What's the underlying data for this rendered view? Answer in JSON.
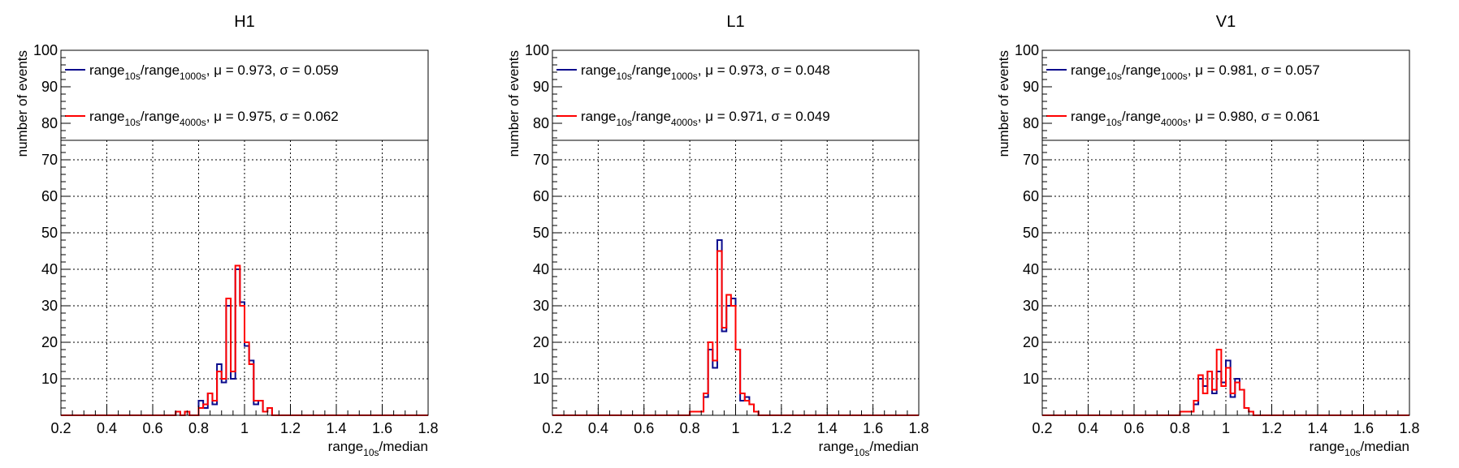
{
  "chart_data": [
    {
      "type": "histogram",
      "title": "H1",
      "xlabel": {
        "base": "range",
        "sub": "10s",
        "rest": "/median"
      },
      "ylabel": "number of events",
      "xlim": [
        0.2,
        1.8
      ],
      "ylim": [
        0,
        100
      ],
      "grid": true,
      "legend_position": "top",
      "x_ticks": [
        "0.2",
        "0.4",
        "0.6",
        "0.8",
        "1",
        "1.2",
        "1.4",
        "1.6",
        "1.8"
      ],
      "y_ticks": [
        "10",
        "20",
        "30",
        "40",
        "50",
        "60",
        "70",
        "80",
        "90",
        "100"
      ],
      "bin_width": 0.02,
      "bin_start": 0.7,
      "series": [
        {
          "legend": {
            "base": "range",
            "sub1": "10s",
            "mid": "/range",
            "sub2": "1000s",
            "stats": ", μ = 0.973, σ = 0.059"
          },
          "color": "#0a0a8c",
          "values": [
            1,
            0,
            1,
            0,
            0,
            4,
            2,
            6,
            3,
            14,
            9,
            30,
            10,
            40,
            31,
            19,
            15,
            3,
            4,
            1,
            2,
            0
          ]
        },
        {
          "legend": {
            "base": "range",
            "sub1": "10s",
            "mid": "/range",
            "sub2": "4000s",
            "stats": ", μ = 0.975, σ = 0.062"
          },
          "color": "#ff0000",
          "values": [
            1,
            0,
            1,
            0,
            0,
            2,
            3,
            6,
            4,
            12,
            10,
            32,
            12,
            41,
            30,
            20,
            14,
            4,
            4,
            1,
            2,
            0
          ]
        }
      ]
    },
    {
      "type": "histogram",
      "title": "L1",
      "xlabel": {
        "base": "range",
        "sub": "10s",
        "rest": "/median"
      },
      "ylabel": "number of events",
      "xlim": [
        0.2,
        1.8
      ],
      "ylim": [
        0,
        100
      ],
      "grid": true,
      "legend_position": "top",
      "x_ticks": [
        "0.2",
        "0.4",
        "0.6",
        "0.8",
        "1",
        "1.2",
        "1.4",
        "1.6",
        "1.8"
      ],
      "y_ticks": [
        "10",
        "20",
        "30",
        "40",
        "50",
        "60",
        "70",
        "80",
        "90",
        "100"
      ],
      "bin_width": 0.02,
      "bin_start": 0.8,
      "series": [
        {
          "legend": {
            "base": "range",
            "sub1": "10s",
            "mid": "/range",
            "sub2": "1000s",
            "stats": ", μ = 0.973, σ = 0.048"
          },
          "color": "#0a0a8c",
          "values": [
            1,
            1,
            1,
            5,
            18,
            13,
            48,
            23,
            30,
            32,
            18,
            4,
            5,
            3,
            1,
            0
          ]
        },
        {
          "legend": {
            "base": "range",
            "sub1": "10s",
            "mid": "/range",
            "sub2": "4000s",
            "stats": ", μ = 0.971, σ = 0.049"
          },
          "color": "#ff0000",
          "values": [
            1,
            1,
            1,
            6,
            20,
            15,
            45,
            24,
            33,
            30,
            18,
            6,
            4,
            3,
            1,
            0
          ]
        }
      ]
    },
    {
      "type": "histogram",
      "title": "V1",
      "xlabel": {
        "base": "range",
        "sub": "10s",
        "rest": "/median"
      },
      "ylabel": "number of events",
      "xlim": [
        0.2,
        1.8
      ],
      "ylim": [
        0,
        100
      ],
      "grid": true,
      "legend_position": "top",
      "x_ticks": [
        "0.2",
        "0.4",
        "0.6",
        "0.8",
        "1",
        "1.2",
        "1.4",
        "1.6",
        "1.8"
      ],
      "y_ticks": [
        "10",
        "20",
        "30",
        "40",
        "50",
        "60",
        "70",
        "80",
        "90",
        "100"
      ],
      "bin_width": 0.02,
      "bin_start": 0.8,
      "series": [
        {
          "legend": {
            "base": "range",
            "sub1": "10s",
            "mid": "/range",
            "sub2": "1000s",
            "stats": ", μ = 0.981, σ = 0.057"
          },
          "color": "#0a0a8c",
          "values": [
            1,
            1,
            1,
            3,
            10,
            8,
            12,
            6,
            12,
            9,
            15,
            5,
            10,
            7,
            2,
            1,
            0
          ]
        },
        {
          "legend": {
            "base": "range",
            "sub1": "10s",
            "mid": "/range",
            "sub2": "4000s",
            "stats": ", μ = 0.980, σ = 0.061"
          },
          "color": "#ff0000",
          "values": [
            1,
            1,
            1,
            4,
            11,
            6,
            12,
            7,
            18,
            8,
            13,
            6,
            9,
            7,
            2,
            1,
            0
          ]
        }
      ]
    }
  ]
}
